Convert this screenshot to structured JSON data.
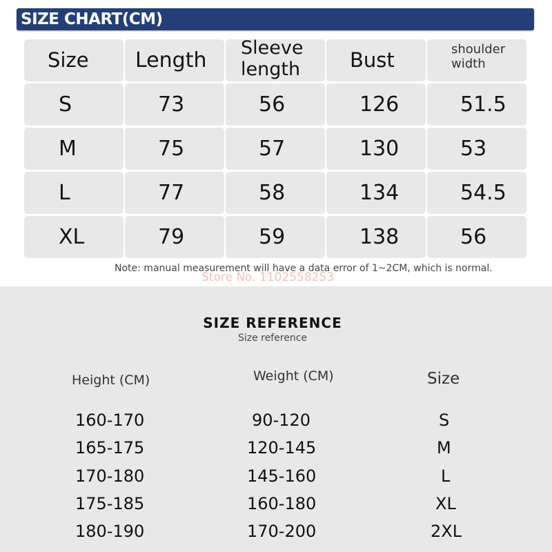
{
  "header": {
    "title": "SIZE CHART(CM)"
  },
  "size_table": {
    "columns": [
      "Size",
      "Length",
      "Sleeve\nlength",
      "Bust",
      "shoulder\nwidth"
    ],
    "rows": [
      [
        "S",
        "73",
        "56",
        "126",
        "51.5"
      ],
      [
        "M",
        "75",
        "57",
        "130",
        "53"
      ],
      [
        "L",
        "77",
        "58",
        "134",
        "54.5"
      ],
      [
        "XL",
        "79",
        "59",
        "138",
        "56"
      ]
    ]
  },
  "note": "Note: manual measurement will have a data error of 1~2CM, which is normal.",
  "watermark": "Store No. 1102558253",
  "reference": {
    "title": "SIZE REFERENCE",
    "subtitle": "Size reference",
    "columns": [
      "Height (CM)",
      "Weight (CM)",
      "Size"
    ],
    "rows": [
      [
        "160-170",
        "90-120",
        "S"
      ],
      [
        "165-175",
        "120-145",
        "M"
      ],
      [
        "170-180",
        "145-160",
        "L"
      ],
      [
        "175-185",
        "160-180",
        "XL"
      ],
      [
        "180-190",
        "170-200",
        "2XL"
      ]
    ]
  }
}
